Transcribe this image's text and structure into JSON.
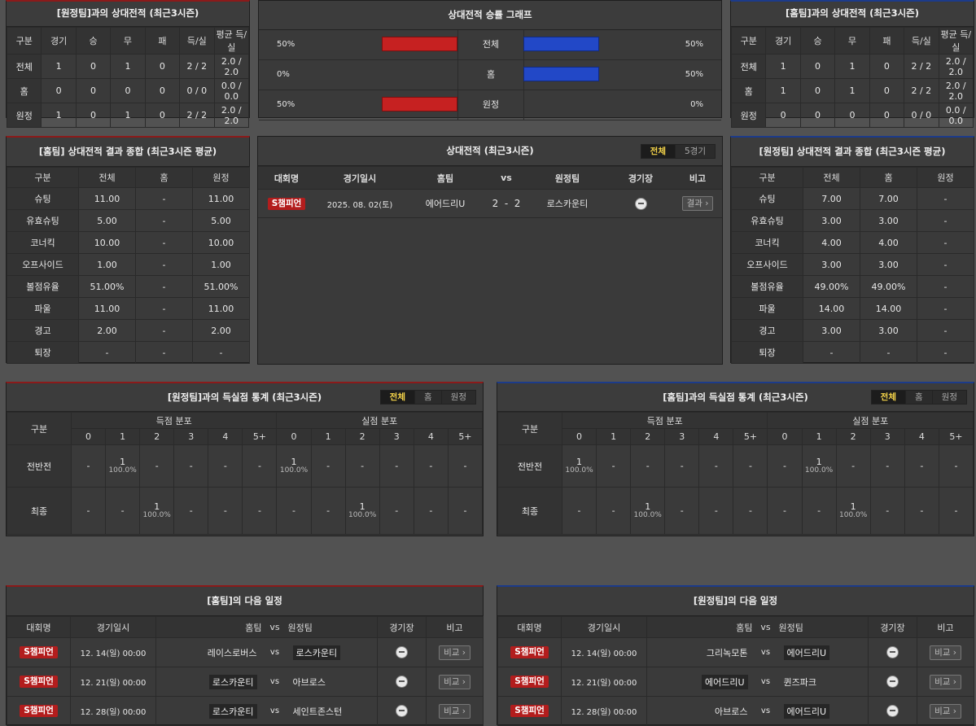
{
  "h2h_away": {
    "title": "[원정팀]과의 상대전적 (최근3시즌)",
    "headers": [
      "구분",
      "경기",
      "승",
      "무",
      "패",
      "득/실",
      "평균 득/실"
    ],
    "rows": [
      [
        "전체",
        "1",
        "0",
        "1",
        "0",
        "2 / 2",
        "2.0 / 2.0"
      ],
      [
        "홈",
        "0",
        "0",
        "0",
        "0",
        "0 / 0",
        "0.0 / 0.0"
      ],
      [
        "원정",
        "1",
        "0",
        "1",
        "0",
        "2 / 2",
        "2.0 / 2.0"
      ]
    ]
  },
  "graph": {
    "title": "상대전적 승률 그래프",
    "rows": [
      {
        "label": "전체",
        "left": "50%",
        "right": "50%",
        "left_value": 50,
        "right_value": 50
      },
      {
        "label": "홈",
        "left": "0%",
        "right": "50%",
        "left_value": 0,
        "right_value": 50
      },
      {
        "label": "원정",
        "left": "50%",
        "right": "0%",
        "left_value": 50,
        "right_value": 0
      }
    ],
    "color_left": "#c62121",
    "color_right": "#2248c7"
  },
  "h2h_home": {
    "title": "[홈팀]과의 상대전적 (최근3시즌)",
    "headers": [
      "구분",
      "경기",
      "승",
      "무",
      "패",
      "득/실",
      "평균 득/실"
    ],
    "rows": [
      [
        "전체",
        "1",
        "0",
        "1",
        "0",
        "2 / 2",
        "2.0 / 2.0"
      ],
      [
        "홈",
        "1",
        "0",
        "1",
        "0",
        "2 / 2",
        "2.0 / 2.0"
      ],
      [
        "원정",
        "0",
        "0",
        "0",
        "0",
        "0 / 0",
        "0.0 / 0.0"
      ]
    ]
  },
  "home_summary": {
    "title": "[홈팀] 상대전적 결과 종합 (최근3시즌 평균)",
    "headers": [
      "구분",
      "전체",
      "홈",
      "원정"
    ],
    "rows": [
      [
        "슈팅",
        "11.00",
        "-",
        "11.00"
      ],
      [
        "유효슈팅",
        "5.00",
        "-",
        "5.00"
      ],
      [
        "코너킥",
        "10.00",
        "-",
        "10.00"
      ],
      [
        "오프사이드",
        "1.00",
        "-",
        "1.00"
      ],
      [
        "볼점유율",
        "51.00%",
        "-",
        "51.00%"
      ],
      [
        "파울",
        "11.00",
        "-",
        "11.00"
      ],
      [
        "경고",
        "2.00",
        "-",
        "2.00"
      ],
      [
        "퇴장",
        "-",
        "-",
        "-"
      ]
    ]
  },
  "h2h_list": {
    "title": "상대전적 (최근3시즌)",
    "tabs": [
      "전체",
      "5경기"
    ],
    "headers": {
      "league": "대회명",
      "date": "경기일시",
      "home": "홈팀",
      "vs": "vs",
      "away": "원정팀",
      "venue": "경기장",
      "note": "비고"
    },
    "rows": [
      {
        "league": "S챔피언",
        "date": "2025. 08. 02(토)",
        "home": "에어드리U",
        "score": "2  -  2",
        "away": "로스카운티",
        "btn": "결과 ›"
      }
    ]
  },
  "away_summary": {
    "title": "[원정팀] 상대전적 결과 종합 (최근3시즌 평균)",
    "headers": [
      "구분",
      "전체",
      "홈",
      "원정"
    ],
    "rows": [
      [
        "슈팅",
        "7.00",
        "7.00",
        "-"
      ],
      [
        "유효슈팅",
        "3.00",
        "3.00",
        "-"
      ],
      [
        "코너킥",
        "4.00",
        "4.00",
        "-"
      ],
      [
        "오프사이드",
        "3.00",
        "3.00",
        "-"
      ],
      [
        "볼점유율",
        "49.00%",
        "49.00%",
        "-"
      ],
      [
        "파울",
        "14.00",
        "14.00",
        "-"
      ],
      [
        "경고",
        "3.00",
        "3.00",
        "-"
      ],
      [
        "퇴장",
        "-",
        "-",
        "-"
      ]
    ]
  },
  "goals_left": {
    "title": "[원정팀]과의 득실점 통계 (최근3시즌)",
    "tabs": [
      "전체",
      "홈",
      "원정"
    ],
    "head": {
      "gubun": "구분",
      "scored": "득점 분포",
      "conceded": "실점 분포"
    },
    "cols": [
      "0",
      "1",
      "2",
      "3",
      "4",
      "5+"
    ],
    "rows": [
      {
        "label": "전반전",
        "scored": [
          [
            "-",
            ""
          ],
          [
            "1",
            "100.0%"
          ],
          [
            "-",
            ""
          ],
          [
            "-",
            ""
          ],
          [
            "-",
            ""
          ],
          [
            "-",
            ""
          ]
        ],
        "conceded": [
          [
            "1",
            "100.0%"
          ],
          [
            "-",
            ""
          ],
          [
            "-",
            ""
          ],
          [
            "-",
            ""
          ],
          [
            "-",
            ""
          ],
          [
            "-",
            ""
          ]
        ]
      },
      {
        "label": "최종",
        "scored": [
          [
            "-",
            ""
          ],
          [
            "-",
            ""
          ],
          [
            "1",
            "100.0%"
          ],
          [
            "-",
            ""
          ],
          [
            "-",
            ""
          ],
          [
            "-",
            ""
          ]
        ],
        "conceded": [
          [
            "-",
            ""
          ],
          [
            "-",
            ""
          ],
          [
            "1",
            "100.0%"
          ],
          [
            "-",
            ""
          ],
          [
            "-",
            ""
          ],
          [
            "-",
            ""
          ]
        ]
      }
    ]
  },
  "goals_right": {
    "title": "[홈팀]과의 득실점 통계 (최근3시즌)",
    "tabs": [
      "전체",
      "홈",
      "원정"
    ],
    "head": {
      "gubun": "구분",
      "scored": "득점 분포",
      "conceded": "실점 분포"
    },
    "cols": [
      "0",
      "1",
      "2",
      "3",
      "4",
      "5+"
    ],
    "rows": [
      {
        "label": "전반전",
        "scored": [
          [
            "1",
            "100.0%"
          ],
          [
            "-",
            ""
          ],
          [
            "-",
            ""
          ],
          [
            "-",
            ""
          ],
          [
            "-",
            ""
          ],
          [
            "-",
            ""
          ]
        ],
        "conceded": [
          [
            "-",
            ""
          ],
          [
            "1",
            "100.0%"
          ],
          [
            "-",
            ""
          ],
          [
            "-",
            ""
          ],
          [
            "-",
            ""
          ],
          [
            "-",
            ""
          ]
        ]
      },
      {
        "label": "최종",
        "scored": [
          [
            "-",
            ""
          ],
          [
            "-",
            ""
          ],
          [
            "1",
            "100.0%"
          ],
          [
            "-",
            ""
          ],
          [
            "-",
            ""
          ],
          [
            "-",
            ""
          ]
        ],
        "conceded": [
          [
            "-",
            ""
          ],
          [
            "-",
            ""
          ],
          [
            "1",
            "100.0%"
          ],
          [
            "-",
            ""
          ],
          [
            "-",
            ""
          ],
          [
            "-",
            ""
          ]
        ]
      }
    ]
  },
  "next_home": {
    "title": "[홈팀]의 다음 일정",
    "headers": {
      "league": "대회명",
      "date": "경기일시",
      "home": "홈팀",
      "vs": "vs",
      "away": "원정팀",
      "venue": "경기장",
      "note": "비고"
    },
    "rows": [
      {
        "league": "S챔피언",
        "date": "12. 14(일) 00:00",
        "home": "레이스로버스",
        "away": "로스카운티",
        "hl": "away",
        "btn": "비교 ›"
      },
      {
        "league": "S챔피언",
        "date": "12. 21(일) 00:00",
        "home": "로스카운티",
        "away": "아브로스",
        "hl": "home",
        "btn": "비교 ›"
      },
      {
        "league": "S챔피언",
        "date": "12. 28(일) 00:00",
        "home": "로스카운티",
        "away": "세인트존스턴",
        "hl": "home",
        "btn": "비교 ›"
      }
    ]
  },
  "next_away": {
    "title": "[원정팀]의 다음 일정",
    "headers": {
      "league": "대회명",
      "date": "경기일시",
      "home": "홈팀",
      "vs": "vs",
      "away": "원정팀",
      "venue": "경기장",
      "note": "비고"
    },
    "rows": [
      {
        "league": "S챔피언",
        "date": "12. 14(일) 00:00",
        "home": "그리녹모톤",
        "away": "에어드리U",
        "hl": "away",
        "btn": "비교 ›"
      },
      {
        "league": "S챔피언",
        "date": "12. 21(일) 00:00",
        "home": "에어드리U",
        "away": "퀸즈파크",
        "hl": "home",
        "btn": "비교 ›"
      },
      {
        "league": "S챔피언",
        "date": "12. 28(일) 00:00",
        "home": "아브로스",
        "away": "에어드리U",
        "hl": "away",
        "btn": "비교 ›"
      }
    ]
  }
}
